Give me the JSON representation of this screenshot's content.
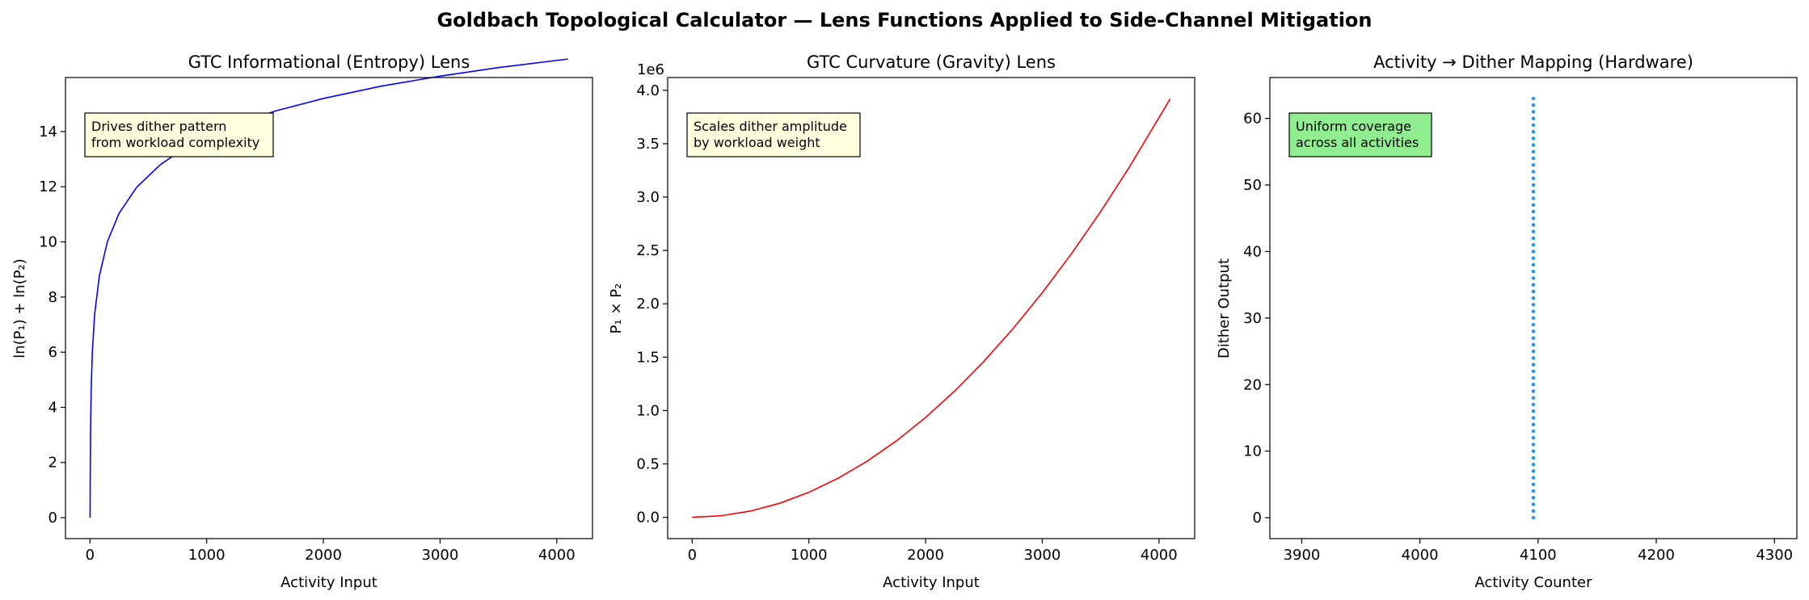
{
  "figure_title": "Goldbach Topological Calculator — Lens Functions Applied to Side-Channel Mitigation",
  "chart_data": [
    {
      "type": "line",
      "title": "GTC Informational (Entropy) Lens",
      "xlabel": "Activity Input",
      "ylabel": "ln(P₁) + ln(P₂)",
      "xlim": [
        -210,
        4306
      ],
      "ylim": [
        -0.76,
        15.96
      ],
      "xticks": [
        0,
        1000,
        2000,
        3000,
        4000
      ],
      "yticks": [
        0,
        2,
        4,
        6,
        8,
        10,
        12,
        14
      ],
      "tick_labels_x": [
        "0",
        "1000",
        "2000",
        "3000",
        "4000"
      ],
      "tick_labels_y": [
        "0",
        "2",
        "4",
        "6",
        "8",
        "10",
        "12",
        "14"
      ],
      "series": [
        {
          "color": "#0000ff",
          "x": [
            1,
            2,
            5,
            10,
            20,
            40,
            80,
            150,
            250,
            400,
            600,
            800,
            1000,
            1300,
            1600,
            2000,
            2500,
            3000,
            3500,
            4096
          ],
          "y": [
            0,
            1.39,
            3.22,
            4.61,
            5.99,
            7.38,
            8.76,
            10.02,
            11.04,
            11.98,
            12.79,
            13.37,
            13.82,
            14.34,
            14.76,
            15.2,
            15.65,
            16.01,
            16.32,
            16.63
          ]
        }
      ],
      "annotation": {
        "lines": [
          "Drives dither pattern",
          "from workload complexity"
        ],
        "bg": "#ffffe0"
      }
    },
    {
      "type": "line",
      "title": "GTC Curvature (Gravity) Lens",
      "xlabel": "Activity Input",
      "ylabel": "P₁ × P₂",
      "offset_label": "1e6",
      "xlim": [
        -210,
        4306
      ],
      "ylim": [
        -0.2,
        4.12
      ],
      "xticks": [
        0,
        1000,
        2000,
        3000,
        4000
      ],
      "yticks": [
        0,
        0.5,
        1.0,
        1.5,
        2.0,
        2.5,
        3.0,
        3.5,
        4.0
      ],
      "tick_labels_x": [
        "0",
        "1000",
        "2000",
        "3000",
        "4000"
      ],
      "tick_labels_y": [
        "0.0",
        "0.5",
        "1.0",
        "1.5",
        "2.0",
        "2.5",
        "3.0",
        "3.5",
        "4.0"
      ],
      "series": [
        {
          "color": "#ff0000",
          "x": [
            0,
            250,
            500,
            750,
            1000,
            1250,
            1500,
            1750,
            2000,
            2250,
            2500,
            2750,
            3000,
            3250,
            3500,
            3750,
            4096
          ],
          "y": [
            0,
            0.0146,
            0.0584,
            0.1315,
            0.2338,
            0.3653,
            0.526,
            0.7159,
            0.935,
            1.1834,
            1.461,
            1.7678,
            2.1038,
            2.469,
            2.8634,
            3.2871,
            3.92
          ]
        }
      ],
      "annotation": {
        "lines": [
          "Scales dither amplitude",
          "by workload weight"
        ],
        "bg": "#ffffe0"
      }
    },
    {
      "type": "scatter",
      "title": "Activity → Dither Mapping (Hardware)",
      "xlabel": "Activity Counter",
      "ylabel": "Dither Output",
      "xlim": [
        3873,
        4319
      ],
      "ylim": [
        -3.15,
        66.15
      ],
      "xticks": [
        3900,
        4000,
        4100,
        4200,
        4300
      ],
      "yticks": [
        0,
        10,
        20,
        30,
        40,
        50,
        60
      ],
      "tick_labels_x": [
        "3900",
        "4000",
        "4100",
        "4200",
        "4300"
      ],
      "tick_labels_y": [
        "0",
        "10",
        "20",
        "30",
        "40",
        "50",
        "60"
      ],
      "series": [
        {
          "color": "#1e90ff",
          "x_constant": 4096,
          "y_range": [
            0,
            63
          ]
        }
      ],
      "annotation": {
        "lines": [
          "Uniform coverage",
          "across all activities"
        ],
        "bg": "#90ee90"
      }
    }
  ]
}
